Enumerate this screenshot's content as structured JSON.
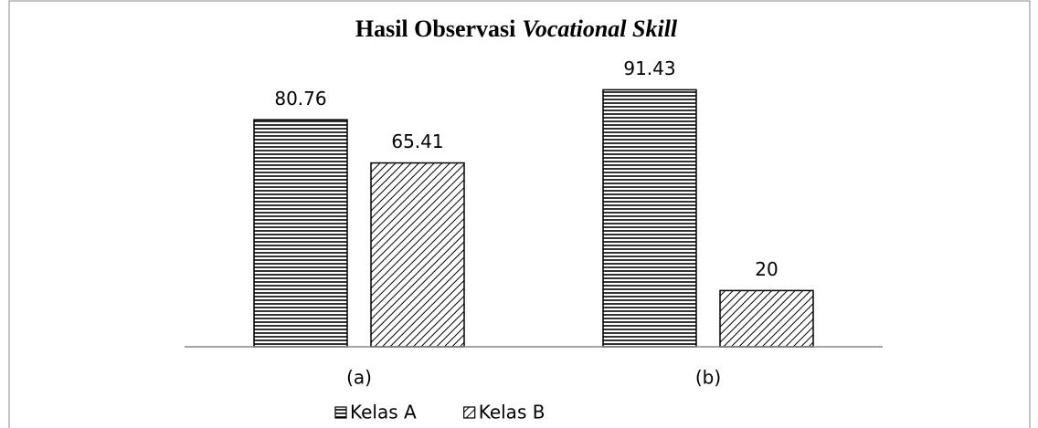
{
  "chart_data": {
    "type": "bar",
    "title": {
      "text": "Hasil Observasi",
      "emphasis": "Vocational Skill"
    },
    "categories": [
      "(a)",
      "(b)"
    ],
    "series": [
      {
        "name": "Kelas A",
        "color": "#000000",
        "pattern": "horizontal",
        "values": [
          80.76,
          91.43
        ]
      },
      {
        "name": "Kelas B",
        "color": "#000000",
        "pattern": "diagonal",
        "values": [
          65.41,
          20
        ]
      }
    ],
    "ylim": [
      0,
      100
    ],
    "legend": "bottom"
  }
}
